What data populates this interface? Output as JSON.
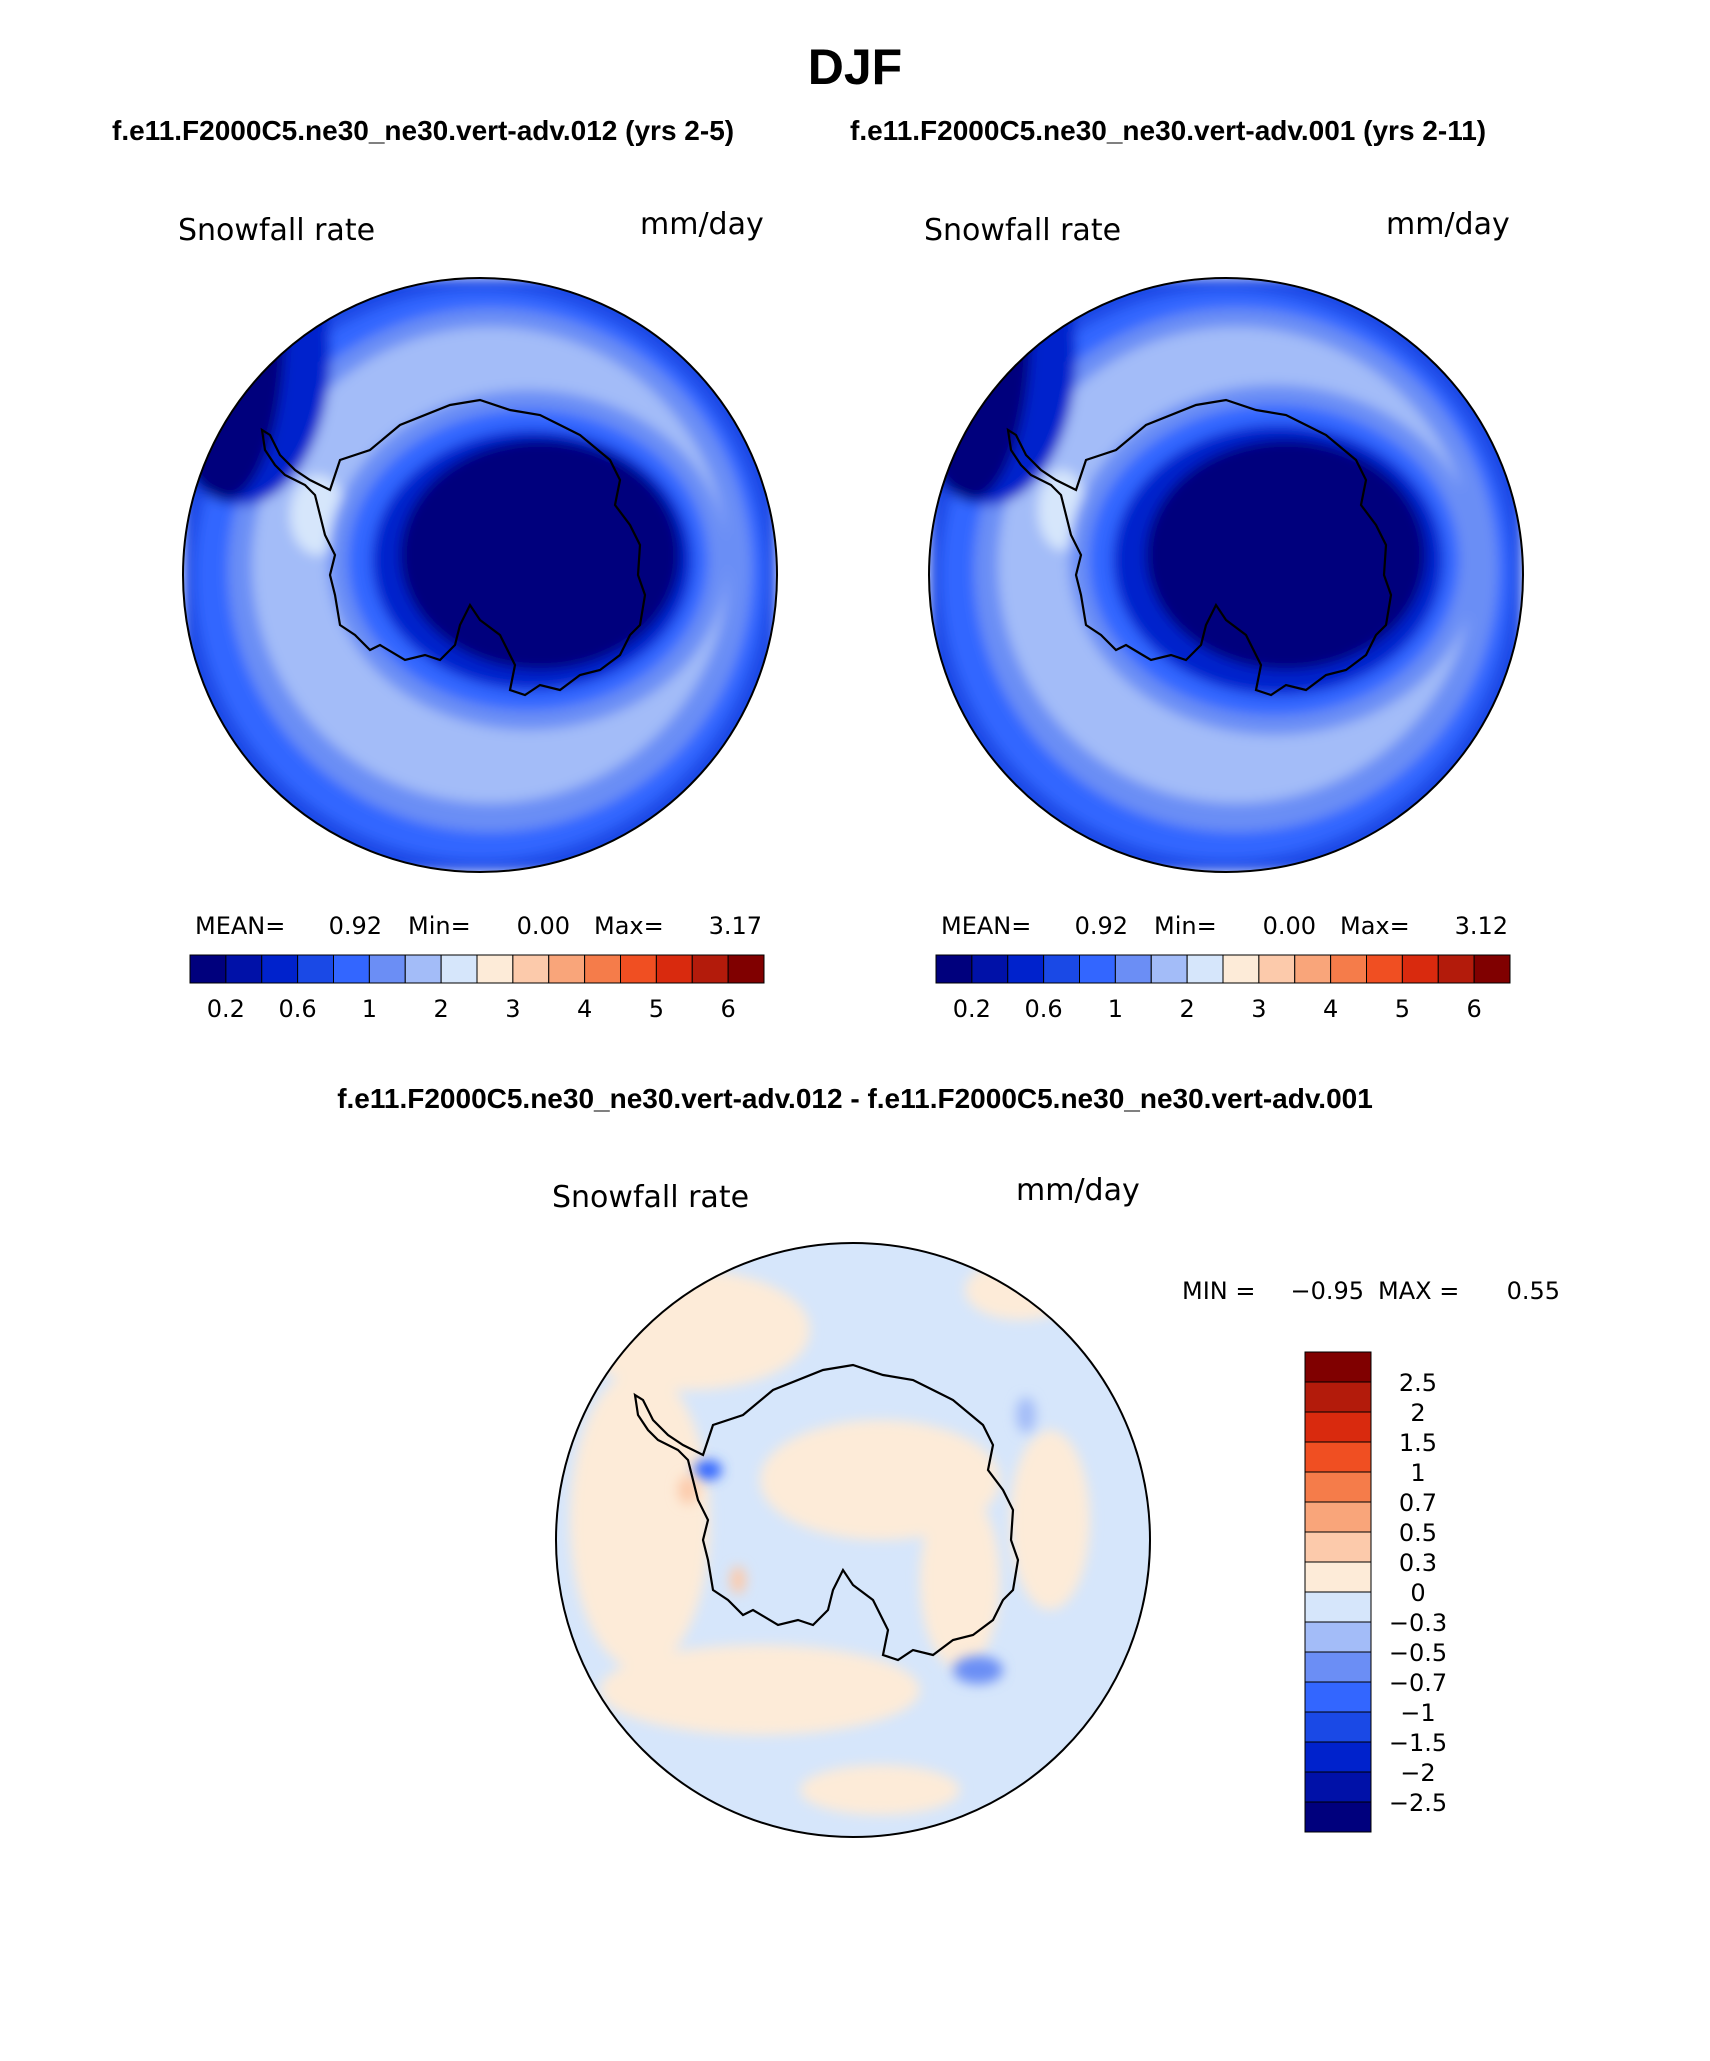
{
  "figure": {
    "title": "DJF",
    "subtitle_left": "f.e11.F2000C5.ne30_ne30.vert-adv.012 (yrs 2-5)",
    "subtitle_right": "f.e11.F2000C5.ne30_ne30.vert-adv.001 (yrs 2-11)",
    "diff_title": "f.e11.F2000C5.ne30_ne30.vert-adv.012 - f.e11.F2000C5.ne30_ne30.vert-adv.001"
  },
  "colors": {
    "seq_levels": [
      "#00007d",
      "#0011a8",
      "#0022cc",
      "#1a49e6",
      "#3366ff",
      "#6b8ef5",
      "#a3bcf8",
      "#d6e6fb",
      "#fdebd8",
      "#fccaab",
      "#f9a57a",
      "#f57c4a",
      "#f04f22",
      "#d92a0e",
      "#b31b0b",
      "#800000"
    ],
    "diff_levels": [
      "#00007d",
      "#0011a8",
      "#0022cc",
      "#1a49e6",
      "#3366ff",
      "#6b8ef5",
      "#a3bcf8",
      "#d6e6fb",
      "#fdebd8",
      "#fccaab",
      "#f9a57a",
      "#f57c4a",
      "#f04f22",
      "#d92a0e",
      "#b31b0b",
      "#800000"
    ],
    "coastline": "#000000"
  },
  "chart_data": [
    {
      "type": "heatmap",
      "panel": "left",
      "projection": "south polar stereographic",
      "variable": "Snowfall rate",
      "units": "mm/day",
      "stats": {
        "mean_label": "MEAN=",
        "mean": "0.92",
        "min_label": "Min=",
        "min": "0.00",
        "max_label": "Max=",
        "max": "3.17"
      },
      "colorbar_ticks": [
        "0.2",
        "0.6",
        "1",
        "2",
        "3",
        "4",
        "5",
        "6"
      ],
      "contour_levels": [
        0.2,
        0.4,
        0.6,
        0.8,
        1,
        1.5,
        2,
        2.5,
        3,
        3.5,
        4,
        4.5,
        5,
        5.5,
        6
      ]
    },
    {
      "type": "heatmap",
      "panel": "right",
      "projection": "south polar stereographic",
      "variable": "Snowfall rate",
      "units": "mm/day",
      "stats": {
        "mean_label": "MEAN=",
        "mean": "0.92",
        "min_label": "Min=",
        "min": "0.00",
        "max_label": "Max=",
        "max": "3.12"
      },
      "colorbar_ticks": [
        "0.2",
        "0.6",
        "1",
        "2",
        "3",
        "4",
        "5",
        "6"
      ],
      "contour_levels": [
        0.2,
        0.4,
        0.6,
        0.8,
        1,
        1.5,
        2,
        2.5,
        3,
        3.5,
        4,
        4.5,
        5,
        5.5,
        6
      ]
    },
    {
      "type": "heatmap",
      "panel": "difference",
      "projection": "south polar stereographic",
      "variable": "Snowfall rate",
      "units": "mm/day",
      "stats": {
        "min_label": "MIN =",
        "min": "−0.95",
        "max_label": "MAX =",
        "max": "0.55"
      },
      "colorbar_ticks": [
        "2.5",
        "2",
        "1.5",
        "1",
        "0.7",
        "0.5",
        "0.3",
        "0",
        "−0.3",
        "−0.5",
        "−0.7",
        "−1",
        "−1.5",
        "−2",
        "−2.5"
      ],
      "contour_levels": [
        -2.5,
        -2,
        -1.5,
        -1,
        -0.7,
        -0.5,
        -0.3,
        0,
        0.3,
        0.5,
        0.7,
        1,
        1.5,
        2,
        2.5
      ]
    }
  ]
}
